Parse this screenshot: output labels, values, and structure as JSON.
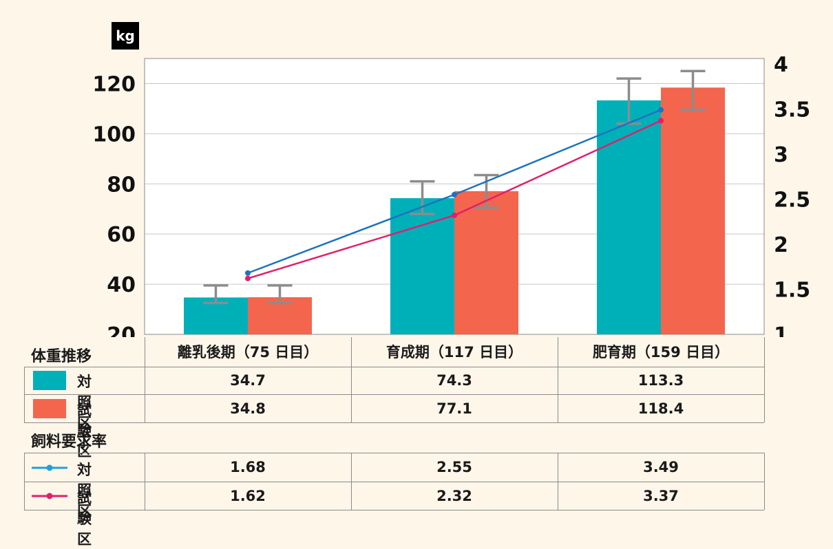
{
  "chart_data": {
    "type": "bar",
    "unit_label": "kg",
    "categories": [
      "離乳後期（75 日目）",
      "育成期（117 日目）",
      "肥育期（159 日目）"
    ],
    "bar_series": [
      {
        "name": "対 照 区",
        "values": [
          34.7,
          74.3,
          113.3
        ],
        "error_low": [
          32.5,
          68.0,
          104.0
        ],
        "error_high": [
          39.5,
          81.0,
          122.0
        ],
        "color": "#00b0b9"
      },
      {
        "name": "試 験 区",
        "values": [
          34.8,
          77.1,
          118.4
        ],
        "error_low": [
          32.5,
          70.5,
          109.5
        ],
        "error_high": [
          39.5,
          83.5,
          125.0
        ],
        "color": "#f4654d"
      }
    ],
    "line_series": [
      {
        "name": "対 照 区",
        "values": [
          1.68,
          2.55,
          3.49
        ],
        "color": "#1e73be"
      },
      {
        "name": "試 験 区",
        "values": [
          1.62,
          2.32,
          3.37
        ],
        "color": "#e0206b"
      }
    ],
    "y_left": {
      "min": 20,
      "max": 130,
      "ticks": [
        20,
        40,
        60,
        80,
        100,
        120
      ]
    },
    "y_right": {
      "min": 1,
      "max": 4.06,
      "ticks": [
        "1",
        "1.5",
        "2",
        "2.5",
        "3",
        "3.5",
        "4"
      ]
    },
    "grid": true
  },
  "table": {
    "weight_title": "体重推移",
    "fcr_title": "飼料要求率",
    "weight_rows": [
      {
        "label": "対 照 区",
        "values": [
          "34.7",
          "74.3",
          "113.3"
        ]
      },
      {
        "label": "試 験 区",
        "values": [
          "34.8",
          "77.1",
          "118.4"
        ]
      }
    ],
    "fcr_rows": [
      {
        "label": "対 照 区",
        "values": [
          "1.68",
          "2.55",
          "3.49"
        ]
      },
      {
        "label": "試 験 区",
        "values": [
          "1.62",
          "2.32",
          "3.37"
        ]
      }
    ]
  }
}
